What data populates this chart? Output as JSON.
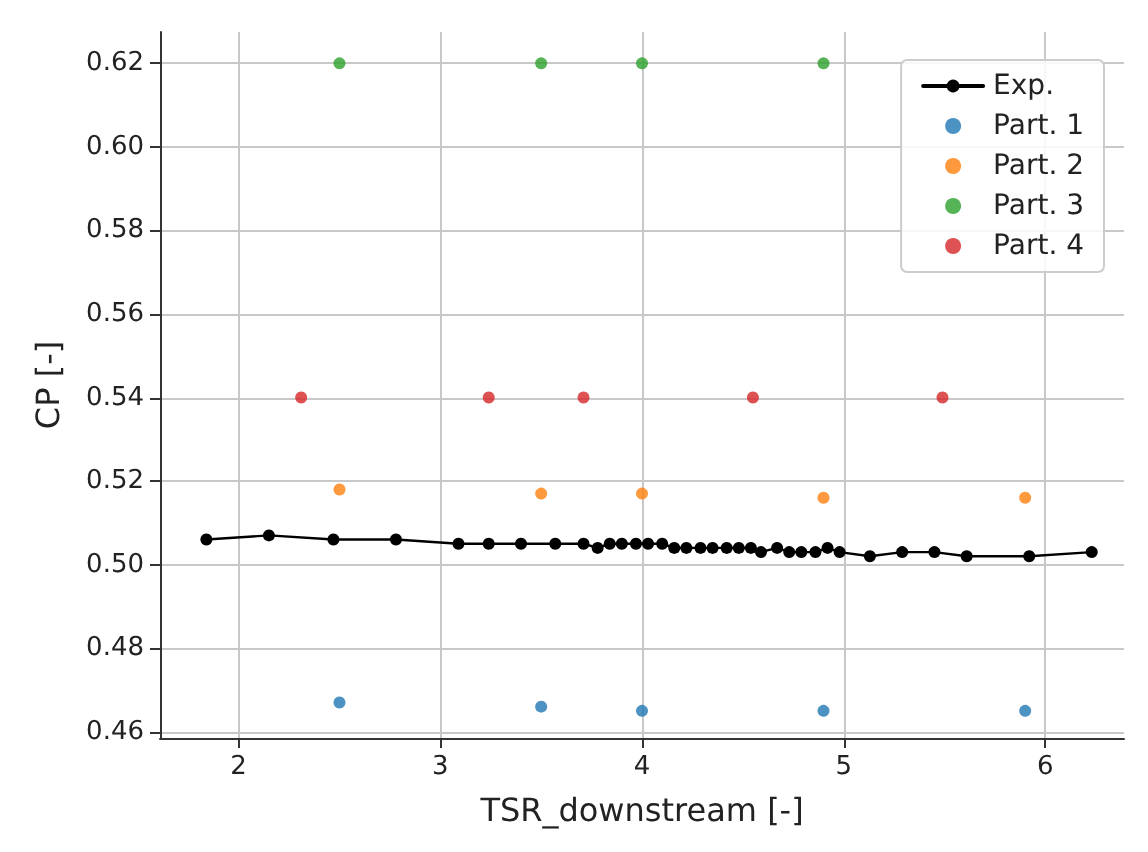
{
  "chart_data": {
    "type": "line",
    "xlabel": "TSR_downstream [-]",
    "ylabel": "CP [-]",
    "xlim": [
      1.61,
      6.39
    ],
    "ylim": [
      0.4585,
      0.6275
    ],
    "xticks": [
      2,
      3,
      4,
      5,
      6
    ],
    "yticks": [
      0.46,
      0.48,
      {
        "value": 0.5,
        "label": "0.50"
      },
      0.52,
      0.54,
      0.56,
      0.58,
      {
        "value": 0.6,
        "label": "0.60"
      },
      0.62
    ],
    "grid": true,
    "legend": "top right",
    "marker": "circle",
    "line_style": "solid",
    "series": [
      {
        "name": "Exp.",
        "color": "#000000",
        "x": [
          1.84,
          2.15,
          2.47,
          2.78,
          3.09,
          3.24,
          3.4,
          3.57,
          3.71,
          3.78,
          3.84,
          3.9,
          3.97,
          4.03,
          4.1,
          4.16,
          4.22,
          4.29,
          4.35,
          4.42,
          4.48,
          4.54,
          4.59,
          4.67,
          4.73,
          4.79,
          4.86,
          4.92,
          4.98,
          5.13,
          5.29,
          5.45,
          5.61,
          5.92,
          6.23
        ],
        "values": [
          0.506,
          0.507,
          0.506,
          0.506,
          0.505,
          0.505,
          0.505,
          0.505,
          0.505,
          0.504,
          0.505,
          0.505,
          0.505,
          0.505,
          0.505,
          0.504,
          0.504,
          0.504,
          0.504,
          0.504,
          0.504,
          0.504,
          0.503,
          0.504,
          0.503,
          0.503,
          0.503,
          0.504,
          0.503,
          0.502,
          0.503,
          0.503,
          0.502,
          0.502,
          0.503
        ]
      },
      {
        "name": "Part. 1",
        "type": "scatter",
        "color": "#1f77b4",
        "x": [
          2.5,
          3.5,
          4.0,
          4.9,
          5.9
        ],
        "values": [
          0.467,
          0.466,
          0.465,
          0.465,
          0.465
        ]
      },
      {
        "name": "Part. 2",
        "type": "scatter",
        "color": "#ff7f0e",
        "x": [
          2.5,
          3.5,
          4.0,
          4.9,
          5.9
        ],
        "values": [
          0.518,
          0.517,
          0.517,
          0.516,
          0.516
        ]
      },
      {
        "name": "Part. 3",
        "type": "scatter",
        "color": "#2ca02c",
        "x": [
          2.5,
          3.5,
          4.0,
          4.9
        ],
        "values": [
          0.62,
          0.62,
          0.62,
          0.62
        ]
      },
      {
        "name": "Part. 4",
        "type": "scatter",
        "color": "#d62728",
        "x": [
          2.31,
          3.24,
          3.71,
          4.55,
          5.49
        ],
        "values": [
          0.54,
          0.54,
          0.54,
          0.54,
          0.54
        ]
      }
    ]
  }
}
